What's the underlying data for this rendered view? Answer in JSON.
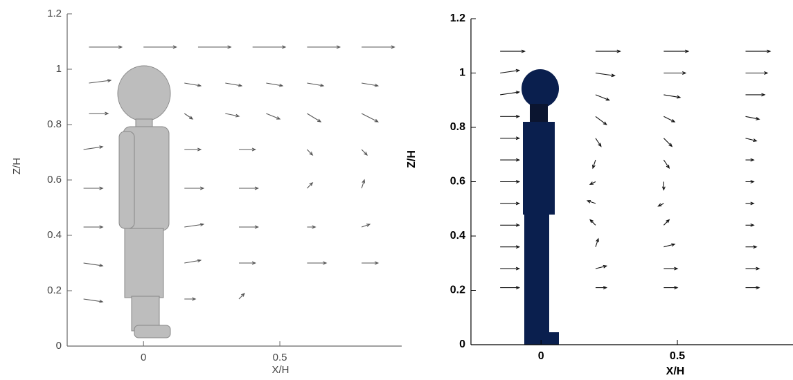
{
  "chart_data": [
    {
      "type": "quiver",
      "xlabel": "X/H",
      "ylabel": "Z/H",
      "color": "#555555",
      "xlim": [
        -0.28,
        0.947
      ],
      "ylim": [
        0,
        1.2
      ],
      "xticks": [
        0,
        0.5
      ],
      "yticks": [
        0,
        0.2,
        0.4,
        0.6,
        0.8,
        1,
        1.2
      ],
      "x": [
        -0.2,
        0,
        0.2,
        0.4,
        0.6,
        0.8,
        -0.2,
        0.15,
        0.3,
        0.45,
        0.6,
        0.8,
        -0.2,
        0.15,
        0.3,
        0.45,
        0.6,
        0.8,
        -0.22,
        0.15,
        0.35,
        0.6,
        0.8,
        -0.22,
        0.15,
        0.35,
        0.6,
        0.8,
        -0.22,
        0.15,
        0.35,
        0.6,
        0.8,
        -0.22,
        0.15,
        0.35,
        0.6,
        0.8,
        -0.22,
        0.15,
        0.35
      ],
      "y": [
        1.08,
        1.08,
        1.08,
        1.08,
        1.08,
        1.08,
        0.95,
        0.95,
        0.95,
        0.95,
        0.95,
        0.95,
        0.84,
        0.84,
        0.84,
        0.84,
        0.84,
        0.84,
        0.71,
        0.71,
        0.71,
        0.71,
        0.71,
        0.57,
        0.57,
        0.57,
        0.57,
        0.57,
        0.43,
        0.43,
        0.43,
        0.43,
        0.43,
        0.3,
        0.3,
        0.3,
        0.3,
        0.3,
        0.17,
        0.17,
        0.17
      ],
      "u": [
        0.12,
        0.12,
        0.12,
        0.12,
        0.12,
        0.12,
        0.08,
        0.06,
        0.06,
        0.06,
        0.06,
        0.06,
        0.07,
        0.03,
        0.05,
        0.05,
        0.05,
        0.06,
        0.07,
        0.06,
        0.06,
        0.02,
        0.02,
        0.07,
        0.07,
        0.07,
        0.02,
        0.01,
        0.07,
        0.07,
        0.07,
        0.03,
        0.03,
        0.07,
        0.06,
        0.06,
        0.07,
        0.06,
        0.07,
        0.04,
        0.02
      ],
      "v": [
        0,
        0,
        0,
        0,
        0,
        0,
        0.01,
        -0.01,
        -0.01,
        -0.01,
        -0.01,
        -0.01,
        0,
        -0.02,
        -0.01,
        -0.02,
        -0.03,
        -0.03,
        0.01,
        0,
        0,
        -0.02,
        -0.02,
        0,
        0,
        0,
        0.02,
        0.03,
        0,
        0.01,
        0,
        0,
        0.01,
        -0.01,
        0.01,
        0,
        0,
        0,
        -0.01,
        0,
        0.02
      ]
    },
    {
      "type": "quiver",
      "xlabel": "X/H",
      "ylabel": "Z/H",
      "color": "#111111",
      "xlim": [
        -0.257,
        0.924
      ],
      "ylim": [
        0,
        1.2
      ],
      "xticks": [
        0,
        0.5
      ],
      "yticks": [
        0,
        0.2,
        0.4,
        0.6,
        0.8,
        1,
        1.2
      ],
      "x": [
        -0.15,
        0.2,
        0.45,
        0.75,
        -0.15,
        0.2,
        0.45,
        0.75,
        -0.15,
        0.2,
        0.45,
        0.75,
        -0.15,
        0.2,
        0.45,
        0.75,
        -0.15,
        0.2,
        0.45,
        0.75,
        -0.15,
        0.2,
        0.45,
        0.75,
        -0.15,
        0.2,
        0.45,
        0.75,
        -0.15,
        0.2,
        0.45,
        0.75,
        -0.15,
        0.2,
        0.45,
        0.75,
        -0.15,
        0.2,
        0.45,
        0.75,
        -0.15,
        0.2,
        0.45,
        0.75,
        -0.15,
        0.2,
        0.45,
        0.75
      ],
      "y": [
        1.08,
        1.08,
        1.08,
        1.08,
        1,
        1,
        1,
        1,
        0.92,
        0.92,
        0.92,
        0.92,
        0.84,
        0.84,
        0.84,
        0.84,
        0.76,
        0.76,
        0.76,
        0.76,
        0.68,
        0.68,
        0.68,
        0.68,
        0.6,
        0.6,
        0.6,
        0.6,
        0.52,
        0.52,
        0.52,
        0.52,
        0.44,
        0.44,
        0.44,
        0.44,
        0.36,
        0.36,
        0.36,
        0.36,
        0.28,
        0.28,
        0.28,
        0.28,
        0.21,
        0.21,
        0.21,
        0.21
      ],
      "u": [
        0.09,
        0.09,
        0.09,
        0.09,
        0.07,
        0.07,
        0.08,
        0.08,
        0.07,
        0.05,
        0.06,
        0.07,
        0.07,
        0.04,
        0.04,
        0.05,
        0.07,
        0.02,
        0.03,
        0.04,
        0.07,
        -0.01,
        0.02,
        0.03,
        0.07,
        -0.02,
        0,
        0.03,
        0.07,
        -0.03,
        -0.02,
        0.03,
        0.07,
        -0.02,
        0.02,
        0.03,
        0.07,
        0.01,
        0.04,
        0.04,
        0.07,
        0.04,
        0.05,
        0.05,
        0.07,
        0.04,
        0.05,
        0.05
      ],
      "v": [
        0,
        0,
        0,
        0,
        0.01,
        -0.01,
        0,
        0,
        0.01,
        -0.02,
        -0.01,
        0,
        0,
        -0.03,
        -0.02,
        -0.01,
        0,
        -0.03,
        -0.03,
        -0.01,
        0,
        -0.03,
        -0.03,
        0,
        0,
        -0.01,
        -0.03,
        0,
        0,
        0.01,
        -0.01,
        0,
        0,
        0.02,
        0.02,
        0,
        0,
        0.03,
        0.01,
        0,
        0,
        0.01,
        0,
        0,
        0,
        0,
        0,
        0
      ]
    }
  ]
}
